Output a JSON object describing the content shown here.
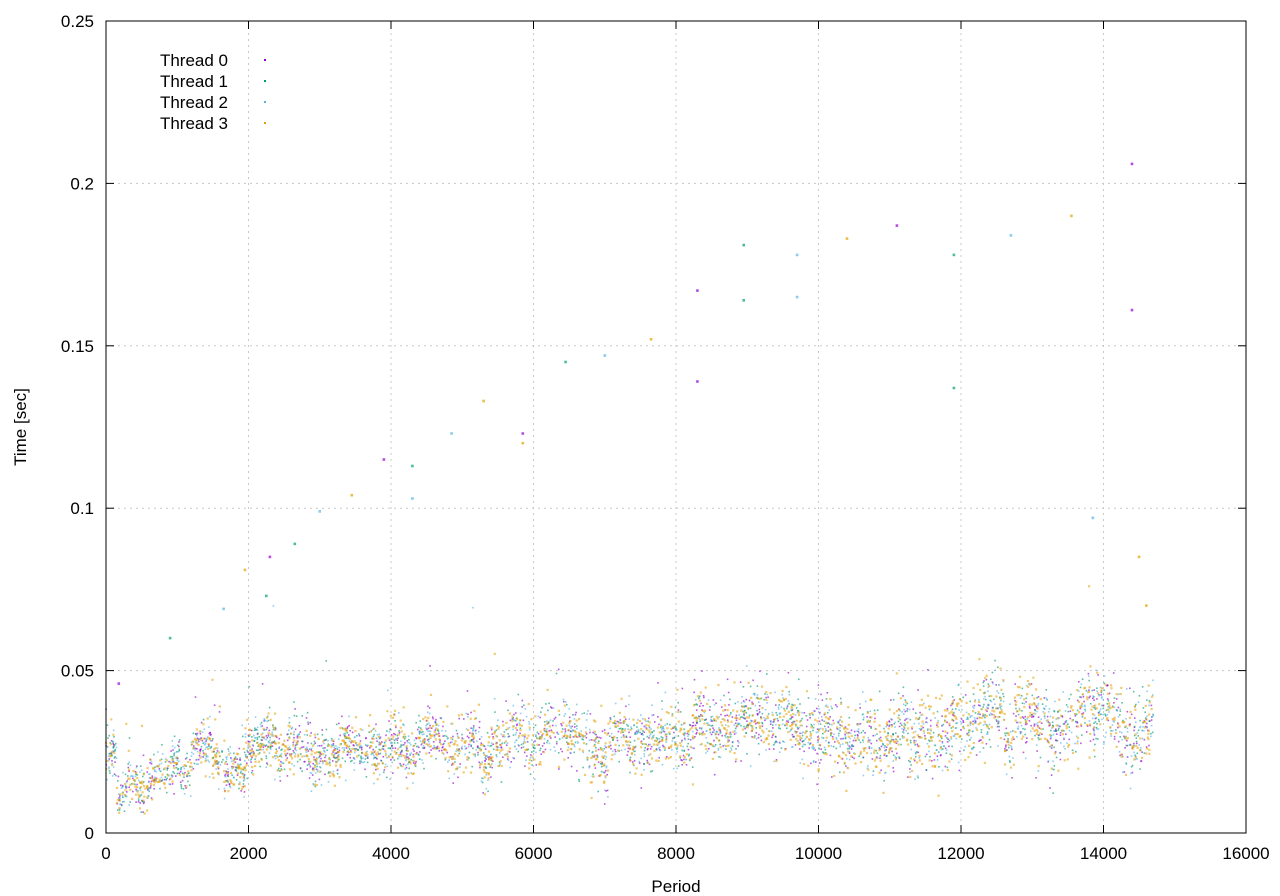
{
  "chart_data": {
    "type": "scatter",
    "title": "",
    "xlabel": "Period",
    "ylabel": "Time [sec]",
    "xlim": [
      0,
      16000
    ],
    "ylim": [
      0,
      0.25
    ],
    "x_ticks": [
      "0",
      "2000",
      "4000",
      "6000",
      "8000",
      "10000",
      "12000",
      "14000",
      "16000"
    ],
    "y_ticks": [
      "0",
      "0.05",
      "0.1",
      "0.15",
      "0.2",
      "0.25"
    ],
    "grid": true,
    "legend_position": "top-left",
    "x_max_data": 14700,
    "baseline_profile": [
      [
        0,
        0.014
      ],
      [
        500,
        0.016
      ],
      [
        1000,
        0.021
      ],
      [
        1500,
        0.023
      ],
      [
        2000,
        0.024
      ],
      [
        2500,
        0.024
      ],
      [
        3000,
        0.025
      ],
      [
        3500,
        0.026
      ],
      [
        4000,
        0.026
      ],
      [
        4500,
        0.026
      ],
      [
        5000,
        0.027
      ],
      [
        5500,
        0.028
      ],
      [
        6000,
        0.029
      ],
      [
        6500,
        0.029
      ],
      [
        7000,
        0.028
      ],
      [
        7500,
        0.03
      ],
      [
        8000,
        0.031
      ],
      [
        8500,
        0.031
      ],
      [
        9000,
        0.032
      ],
      [
        9500,
        0.032
      ],
      [
        10000,
        0.032
      ],
      [
        10500,
        0.032
      ],
      [
        11000,
        0.032
      ],
      [
        11500,
        0.033
      ],
      [
        12000,
        0.032
      ],
      [
        12500,
        0.033
      ],
      [
        13000,
        0.033
      ],
      [
        13500,
        0.034
      ],
      [
        14000,
        0.035
      ],
      [
        14700,
        0.034
      ]
    ],
    "series": [
      {
        "name": "Thread 0",
        "color": "#9400d3"
      },
      {
        "name": "Thread 1",
        "color": "#009e73"
      },
      {
        "name": "Thread 2",
        "color": "#56b4e9"
      },
      {
        "name": "Thread 3",
        "color": "#e69f00"
      }
    ],
    "outliers": [
      [
        180,
        0.046
      ],
      [
        900,
        0.06
      ],
      [
        1650,
        0.069
      ],
      [
        1950,
        0.081
      ],
      [
        2300,
        0.085
      ],
      [
        2650,
        0.089
      ],
      [
        3000,
        0.099
      ],
      [
        3450,
        0.104
      ],
      [
        3900,
        0.115
      ],
      [
        4300,
        0.113
      ],
      [
        4850,
        0.123
      ],
      [
        5300,
        0.133
      ],
      [
        5850,
        0.123
      ],
      [
        6450,
        0.145
      ],
      [
        7000,
        0.147
      ],
      [
        7650,
        0.152
      ],
      [
        8300,
        0.167
      ],
      [
        8950,
        0.181
      ],
      [
        9700,
        0.178
      ],
      [
        10400,
        0.183
      ],
      [
        11100,
        0.187
      ],
      [
        11900,
        0.178
      ],
      [
        12700,
        0.184
      ],
      [
        13550,
        0.19
      ],
      [
        14400,
        0.206
      ],
      [
        2250,
        0.073
      ],
      [
        4300,
        0.103
      ],
      [
        5850,
        0.12
      ],
      [
        8300,
        0.139
      ],
      [
        11900,
        0.137
      ],
      [
        13850,
        0.097
      ],
      [
        14500,
        0.085
      ],
      [
        14400,
        0.161
      ],
      [
        8950,
        0.164
      ],
      [
        9700,
        0.165
      ],
      [
        14600,
        0.07
      ]
    ]
  }
}
